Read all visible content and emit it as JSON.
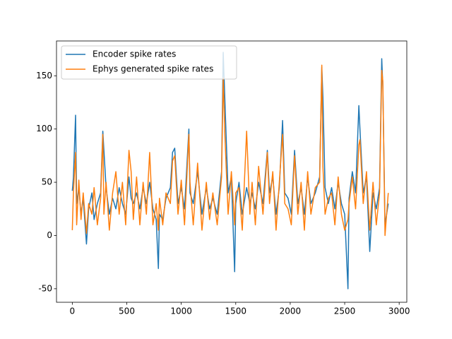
{
  "chart_data": {
    "type": "line",
    "x": [
      0,
      10,
      30,
      40,
      60,
      80,
      100,
      130,
      150,
      180,
      200,
      230,
      260,
      280,
      290,
      310,
      340,
      370,
      400,
      430,
      460,
      490,
      520,
      540,
      560,
      590,
      620,
      650,
      680,
      710,
      740,
      770,
      790,
      800,
      830,
      860,
      900,
      920,
      940,
      970,
      1000,
      1030,
      1070,
      1080,
      1110,
      1150,
      1190,
      1230,
      1260,
      1290,
      1330,
      1370,
      1385,
      1400,
      1430,
      1460,
      1490,
      1500,
      1530,
      1560,
      1600,
      1630,
      1650,
      1680,
      1710,
      1750,
      1790,
      1810,
      1840,
      1870,
      1900,
      1930,
      1950,
      1980,
      2010,
      2040,
      2070,
      2100,
      2130,
      2160,
      2190,
      2230,
      2270,
      2290,
      2300,
      2320,
      2350,
      2380,
      2410,
      2440,
      2470,
      2500,
      2530,
      2540,
      2570,
      2600,
      2630,
      2640,
      2670,
      2700,
      2730,
      2760,
      2790,
      2820,
      2840,
      2850,
      2870,
      2900
    ],
    "series": [
      {
        "name": "Encoder spike rates",
        "color": "#1f77b4",
        "values": [
          42,
          54,
          113,
          30,
          45,
          20,
          35,
          -8,
          25,
          40,
          15,
          30,
          40,
          98,
          80,
          45,
          20,
          35,
          25,
          45,
          30,
          20,
          55,
          35,
          30,
          40,
          25,
          45,
          30,
          50,
          25,
          15,
          -31,
          20,
          15,
          35,
          45,
          78,
          82,
          30,
          45,
          25,
          100,
          40,
          30,
          60,
          20,
          45,
          25,
          35,
          20,
          60,
          172,
          128,
          40,
          55,
          -34,
          30,
          50,
          20,
          45,
          30,
          40,
          25,
          50,
          30,
          80,
          40,
          55,
          20,
          45,
          108,
          40,
          35,
          20,
          80,
          30,
          45,
          20,
          55,
          30,
          40,
          55,
          158,
          130,
          45,
          30,
          45,
          25,
          50,
          30,
          20,
          -50,
          35,
          60,
          40,
          122,
          100,
          40,
          55,
          -15,
          40,
          25,
          45,
          166,
          140,
          10,
          30
        ]
      },
      {
        "name": "Ephys generated spike rates",
        "color": "#ff7f0e",
        "values": [
          5,
          40,
          78,
          10,
          52,
          15,
          40,
          2,
          30,
          20,
          45,
          10,
          35,
          95,
          20,
          50,
          5,
          40,
          60,
          20,
          50,
          10,
          80,
          60,
          15,
          55,
          10,
          50,
          20,
          78,
          10,
          30,
          5,
          35,
          10,
          40,
          30,
          70,
          75,
          20,
          52,
          10,
          95,
          50,
          10,
          68,
          5,
          50,
          15,
          40,
          10,
          55,
          148,
          95,
          20,
          60,
          10,
          40,
          45,
          5,
          98,
          20,
          50,
          10,
          65,
          20,
          78,
          30,
          60,
          5,
          50,
          95,
          30,
          25,
          10,
          75,
          20,
          50,
          5,
          60,
          20,
          45,
          50,
          160,
          65,
          20,
          35,
          40,
          10,
          55,
          20,
          5,
          15,
          30,
          55,
          25,
          85,
          90,
          30,
          60,
          5,
          50,
          10,
          40,
          155,
          145,
          0,
          40
        ]
      }
    ],
    "xlim": [
      -145,
      3070
    ],
    "ylim": [
      -62.7,
      182.7
    ],
    "xticks": [
      0,
      500,
      1000,
      1500,
      2000,
      2500,
      3000
    ],
    "yticks": [
      -50,
      0,
      50,
      100,
      150
    ],
    "legend": "upper left"
  }
}
